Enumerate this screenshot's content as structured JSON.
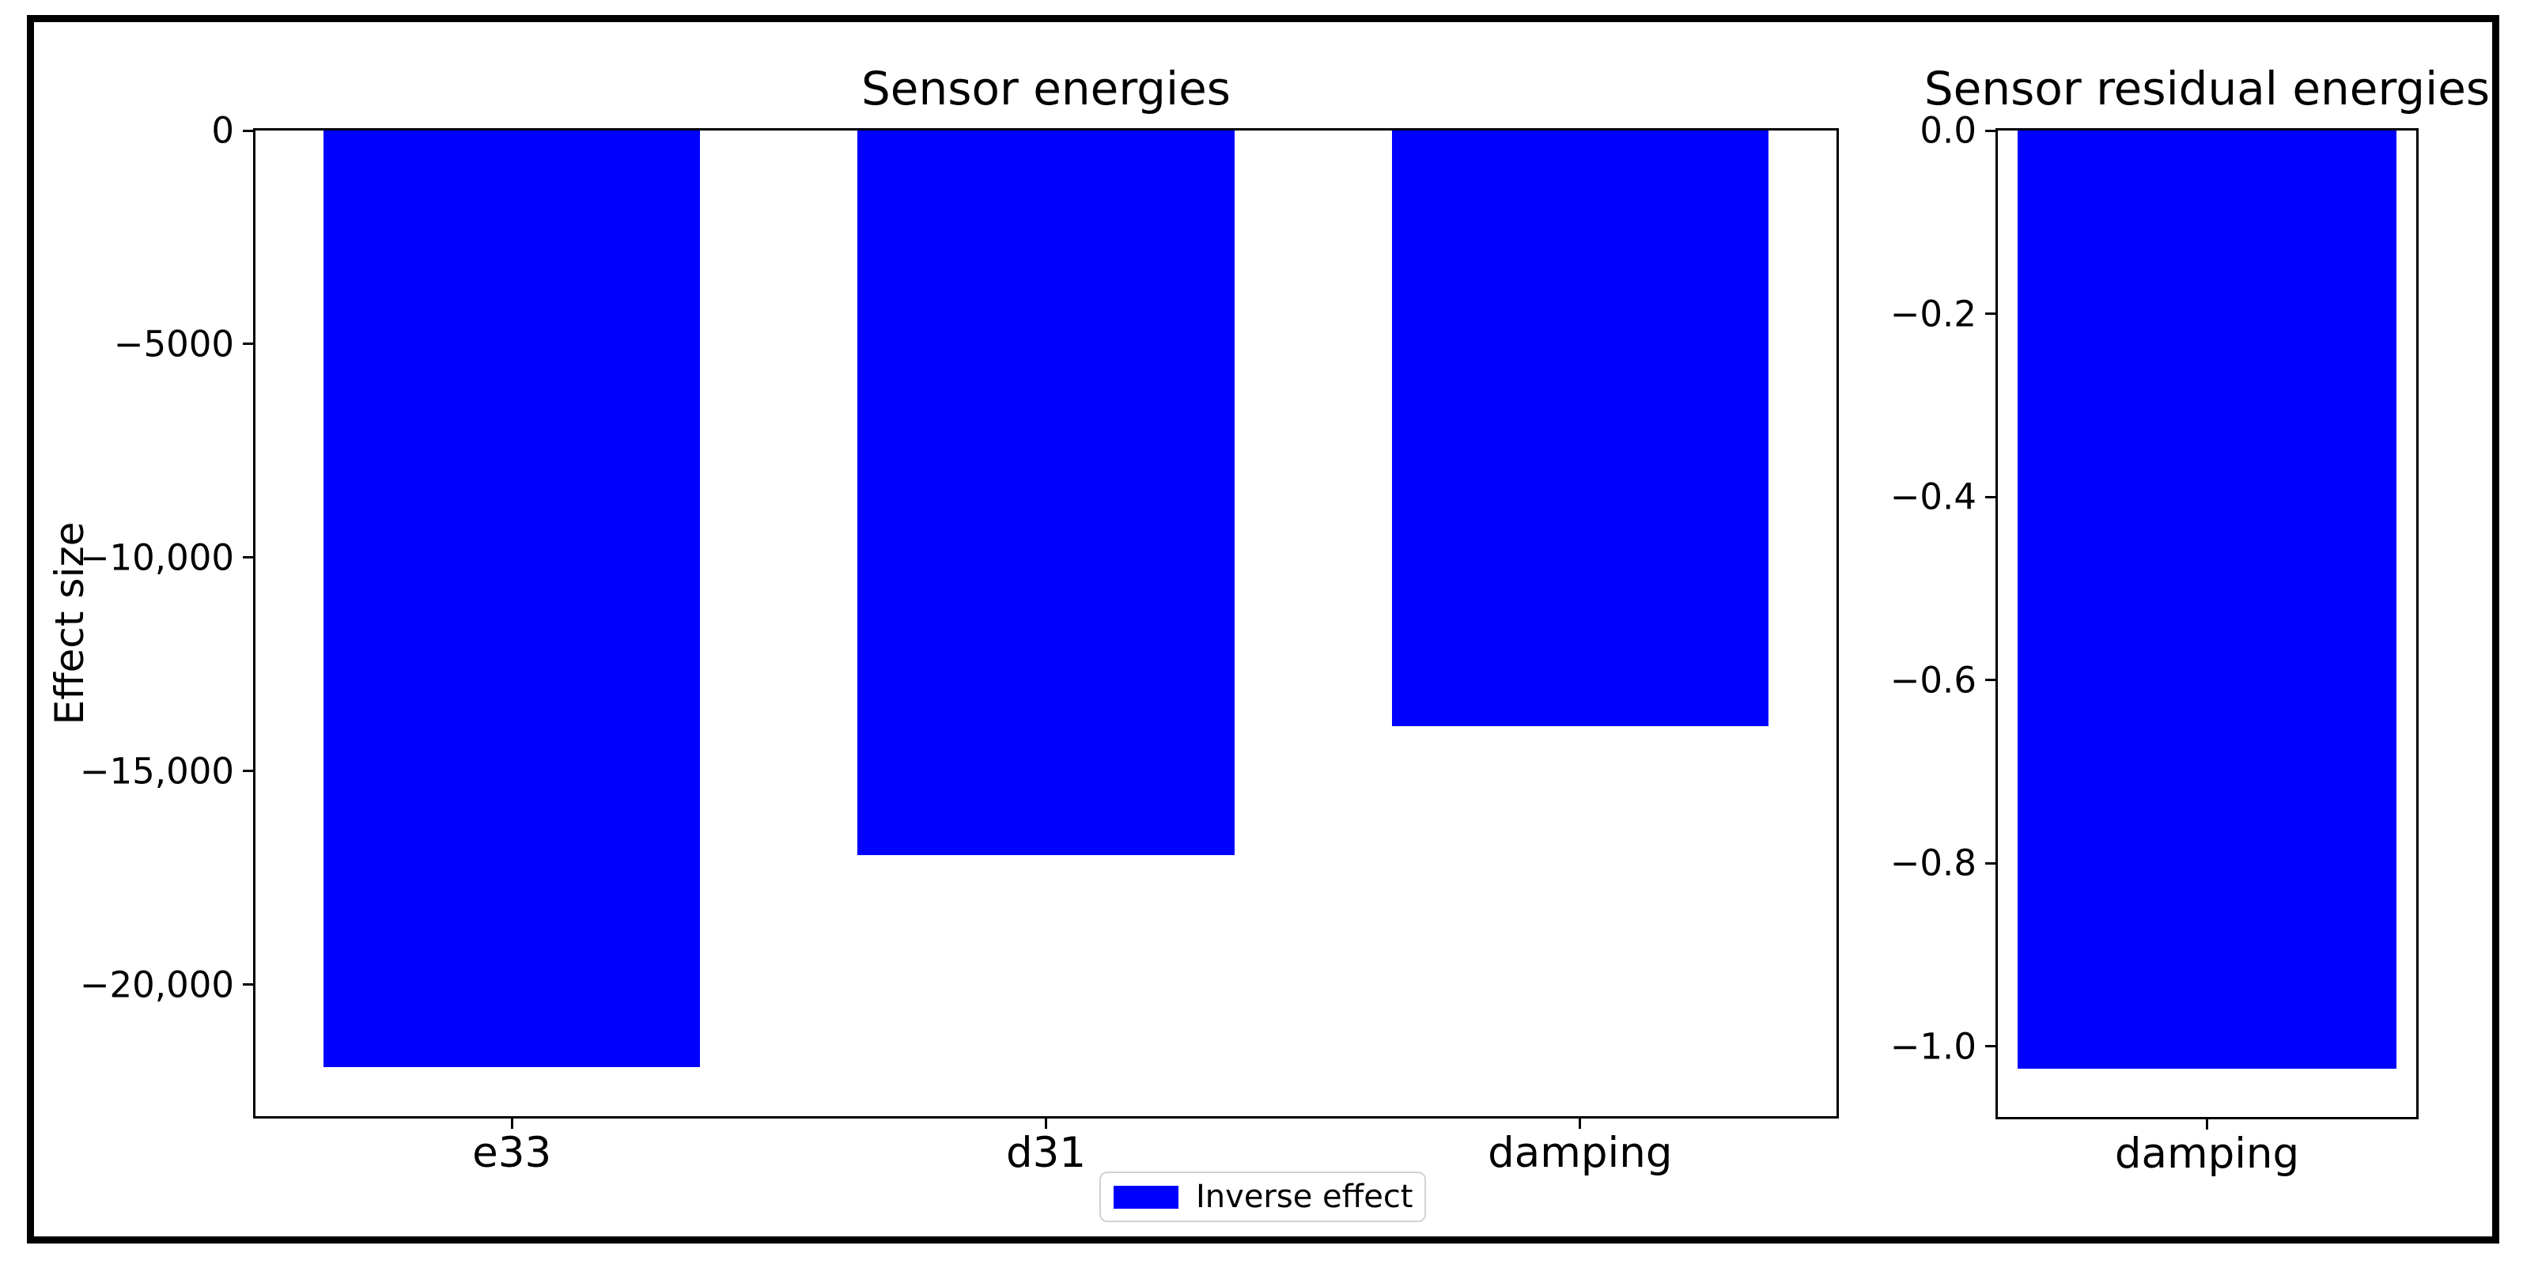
{
  "figure": {
    "background": "#ffffff",
    "border_color": "#000000"
  },
  "legend": {
    "label": "Inverse effect",
    "swatch_color": "#0000ff"
  },
  "chart_data": [
    {
      "type": "bar",
      "title": "Sensor energies",
      "ylabel": "Effect size",
      "xlabel": "",
      "series_name": "Inverse effect",
      "categories": [
        "e33",
        "d31",
        "damping"
      ],
      "values": [
        -21940,
        -16960,
        -13950
      ],
      "bar_color": "#0000ff",
      "ylim": [
        -23080,
        0
      ],
      "yticks": [
        0,
        -5000,
        -10000,
        -15000,
        -20000
      ],
      "ytick_labels": [
        "0",
        "−5000",
        "−10,000",
        "−15,000",
        "−20,000"
      ],
      "xlim": [
        -0.48,
        2.48
      ],
      "bar_width": 0.705,
      "grid": false,
      "legend_position": "below-axis-center"
    },
    {
      "type": "bar",
      "title": "Sensor residual energies",
      "ylabel": "",
      "xlabel": "",
      "series_name": "Inverse effect",
      "categories": [
        "damping"
      ],
      "values": [
        -1.024
      ],
      "bar_color": "#0000ff",
      "ylim": [
        -1.077,
        0
      ],
      "yticks": [
        0,
        -0.2,
        -0.4,
        -0.6,
        -0.8,
        -1.0
      ],
      "ytick_labels": [
        "0.0",
        "−0.2",
        "−0.4",
        "−0.6",
        "−0.8",
        "−1.0"
      ],
      "xlim": [
        -0.389,
        0.389
      ],
      "bar_width": 0.705,
      "grid": false
    }
  ]
}
